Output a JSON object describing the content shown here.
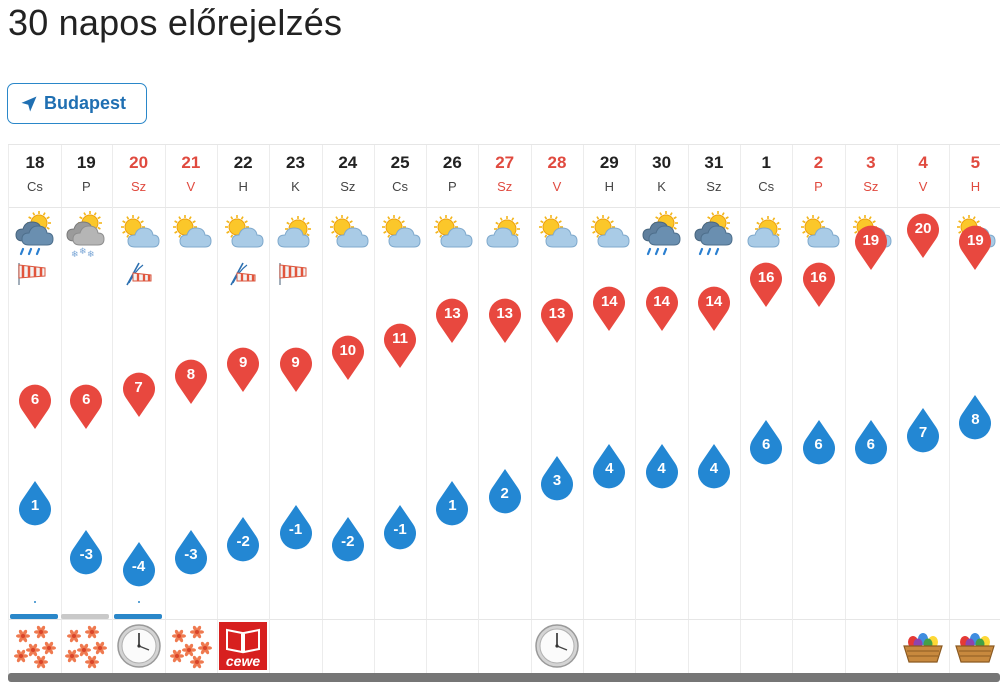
{
  "page": {
    "title": "30 napos előrejelzés"
  },
  "location": {
    "label": "Budapest"
  },
  "days": [
    {
      "num": "18",
      "name": "Cs",
      "weekend": false,
      "weather": "rain-sun-cloud-icon",
      "wind": "windsock-icon",
      "max": 6,
      "min": 1,
      "precip": "blue",
      "event": "folk-pattern-icon"
    },
    {
      "num": "19",
      "name": "P",
      "weekend": false,
      "weather": "snow-sun-cloud-icon",
      "wind": "",
      "max": 6,
      "min": -3,
      "precip": "gray",
      "event": "folk-pattern-icon"
    },
    {
      "num": "20",
      "name": "Sz",
      "weekend": true,
      "weather": "partly-cloudy-icon",
      "wind": "wind-gust-icon",
      "max": 7,
      "min": -4,
      "precip": "blue",
      "event": "clock-icon"
    },
    {
      "num": "21",
      "name": "V",
      "weekend": true,
      "weather": "partly-cloudy-icon",
      "wind": "",
      "max": 8,
      "min": -3,
      "precip": "",
      "event": "folk-pattern-icon"
    },
    {
      "num": "22",
      "name": "H",
      "weekend": false,
      "weather": "partly-cloudy-icon",
      "wind": "wind-gust-icon",
      "max": 9,
      "min": -2,
      "precip": "",
      "event": "book-logo-icon",
      "event_text": "cewe"
    },
    {
      "num": "23",
      "name": "K",
      "weekend": false,
      "weather": "mostly-sunny-icon",
      "wind": "windsock-icon",
      "max": 9,
      "min": -1,
      "precip": "",
      "event": ""
    },
    {
      "num": "24",
      "name": "Sz",
      "weekend": false,
      "weather": "partly-cloudy-icon",
      "wind": "",
      "max": 10,
      "min": -2,
      "precip": "",
      "event": ""
    },
    {
      "num": "25",
      "name": "Cs",
      "weekend": false,
      "weather": "partly-cloudy-icon",
      "wind": "",
      "max": 11,
      "min": -1,
      "precip": "",
      "event": ""
    },
    {
      "num": "26",
      "name": "P",
      "weekend": false,
      "weather": "partly-cloudy-icon",
      "wind": "",
      "max": 13,
      "min": 1,
      "precip": "",
      "event": ""
    },
    {
      "num": "27",
      "name": "Sz",
      "weekend": true,
      "weather": "mostly-sunny-icon",
      "wind": "",
      "max": 13,
      "min": 2,
      "precip": "",
      "event": ""
    },
    {
      "num": "28",
      "name": "V",
      "weekend": true,
      "weather": "partly-cloudy-icon",
      "wind": "",
      "max": 13,
      "min": 3,
      "precip": "",
      "event": "clock-icon"
    },
    {
      "num": "29",
      "name": "H",
      "weekend": false,
      "weather": "partly-cloudy-icon",
      "wind": "",
      "max": 14,
      "min": 4,
      "precip": "",
      "event": ""
    },
    {
      "num": "30",
      "name": "K",
      "weekend": false,
      "weather": "rain-sun-cloud-icon",
      "wind": "",
      "max": 14,
      "min": 4,
      "precip": "",
      "event": ""
    },
    {
      "num": "31",
      "name": "Sz",
      "weekend": false,
      "weather": "rain-sun-cloud-icon",
      "wind": "",
      "max": 14,
      "min": 4,
      "precip": "",
      "event": ""
    },
    {
      "num": "1",
      "name": "Cs",
      "weekend": false,
      "weather": "mostly-sunny-icon",
      "wind": "",
      "max": 16,
      "min": 6,
      "precip": "",
      "event": ""
    },
    {
      "num": "2",
      "name": "P",
      "weekend": true,
      "weather": "partly-cloudy-icon",
      "wind": "",
      "max": 16,
      "min": 6,
      "precip": "",
      "event": ""
    },
    {
      "num": "3",
      "name": "Sz",
      "weekend": true,
      "weather": "partly-cloudy-icon",
      "wind": "",
      "max": 19,
      "min": 6,
      "precip": "",
      "event": ""
    },
    {
      "num": "4",
      "name": "V",
      "weekend": true,
      "weather": "sunny-icon",
      "wind": "",
      "max": 20,
      "min": 7,
      "precip": "",
      "event": "easter-basket-icon"
    },
    {
      "num": "5",
      "name": "H",
      "weekend": true,
      "weather": "partly-cloudy-icon",
      "wind": "",
      "max": 19,
      "min": 8,
      "precip": "",
      "event": "easter-basket-icon"
    }
  ],
  "colors": {
    "max_pin": "#e8483f",
    "min_drop": "#2387d3",
    "weekend_text": "#e04a3f",
    "precip_blue": "#2a87c9",
    "precip_gray": "#c9c9c9"
  }
}
